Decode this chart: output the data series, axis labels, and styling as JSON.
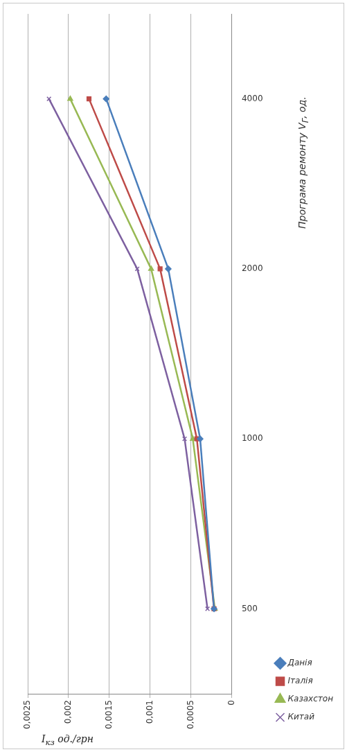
{
  "chart_data": {
    "type": "line",
    "orientation": "horizontal",
    "xlabel": "I$_{кз}$ од./грн",
    "ylabel": "Програма ремонту V$_{Г}$, од.",
    "categories": [
      "4000",
      "2000",
      "1000",
      "500"
    ],
    "series": [
      {
        "name": "Данія",
        "color": "#4a7ebb",
        "marker": "diamond",
        "values": [
          0.00154,
          0.00078,
          0.00039,
          0.00022
        ]
      },
      {
        "name": "Італія",
        "color": "#be4b48",
        "marker": "square",
        "values": [
          0.00175,
          0.00088,
          0.00043,
          0.00022
        ]
      },
      {
        "name": "Казахстон",
        "color": "#98b954",
        "marker": "triangle",
        "values": [
          0.00198,
          0.00099,
          0.00048,
          0.00021
        ]
      },
      {
        "name": "Китай",
        "color": "#7d60a0",
        "marker": "cross",
        "values": [
          0.00224,
          0.00116,
          0.00058,
          0.0003
        ]
      }
    ],
    "xlim": [
      0.0025,
      0
    ],
    "xticks": [
      {
        "value": 0.0025,
        "label": "0,0025"
      },
      {
        "value": 0.002,
        "label": "0,002"
      },
      {
        "value": 0.0015,
        "label": "0,0015"
      },
      {
        "value": 0.001,
        "label": "0,001"
      },
      {
        "value": 0.0005,
        "label": "0,0005"
      },
      {
        "value": 0,
        "label": "0"
      }
    ],
    "grid": "x",
    "legend": "bottom right",
    "line_style": "solid"
  }
}
